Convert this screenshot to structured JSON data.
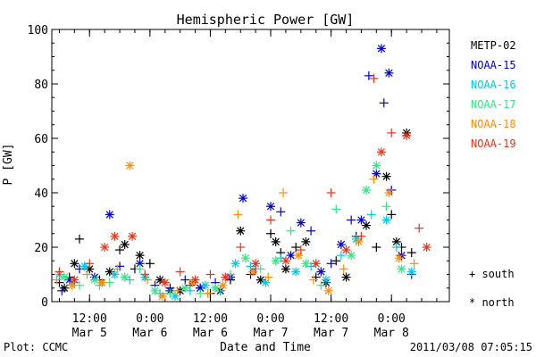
{
  "chart_data": {
    "type": "scatter",
    "title": "Hemispheric Power [GW]",
    "ylabel": "P [GW]",
    "xlabel": "Date and Time",
    "ylim": [
      0,
      100
    ],
    "xlim": [
      "2011-03-05T04:30",
      "2011-03-08T11:30"
    ],
    "yticks": [
      0,
      20,
      40,
      60,
      80,
      100
    ],
    "xticks": [
      {
        "time": "2011-03-05T12:00",
        "label1": "12:00",
        "label2": "Mar 5"
      },
      {
        "time": "2011-03-06T00:00",
        "label1": "0:00",
        "label2": "Mar 6"
      },
      {
        "time": "2011-03-06T12:00",
        "label1": "12:00",
        "label2": "Mar 6"
      },
      {
        "time": "2011-03-07T00:00",
        "label1": "0:00",
        "label2": "Mar 7"
      },
      {
        "time": "2011-03-07T12:00",
        "label1": "12:00",
        "label2": "Mar 7"
      },
      {
        "time": "2011-03-08T00:00",
        "label1": "0:00",
        "label2": "Mar 8"
      }
    ],
    "marker_legend": {
      "south": "+ south",
      "north": "* north"
    },
    "series": [
      {
        "name": "METP-02",
        "color": "#000000",
        "points": [
          [
            "2011-03-05T06:00",
            7,
            "+"
          ],
          [
            "2011-03-05T07:00",
            5,
            "*"
          ],
          [
            "2011-03-05T08:00",
            9,
            "+"
          ],
          [
            "2011-03-05T09:00",
            14,
            "*"
          ],
          [
            "2011-03-05T10:00",
            23,
            "+"
          ],
          [
            "2011-03-05T12:00",
            12,
            "*"
          ],
          [
            "2011-03-05T14:00",
            8,
            "+"
          ],
          [
            "2011-03-05T16:00",
            11,
            "*"
          ],
          [
            "2011-03-05T18:00",
            19,
            "+"
          ],
          [
            "2011-03-05T19:00",
            21,
            "*"
          ],
          [
            "2011-03-05T21:00",
            12,
            "+"
          ],
          [
            "2011-03-05T22:00",
            17,
            "*"
          ],
          [
            "2011-03-06T00:00",
            14,
            "+"
          ],
          [
            "2011-03-06T02:00",
            8,
            "*"
          ],
          [
            "2011-03-06T04:00",
            5,
            "+"
          ],
          [
            "2011-03-06T06:00",
            4,
            "*"
          ],
          [
            "2011-03-06T08:00",
            6,
            "+"
          ],
          [
            "2011-03-06T10:00",
            5,
            "*"
          ],
          [
            "2011-03-06T12:00",
            3,
            "+"
          ],
          [
            "2011-03-06T14:00",
            4,
            "*"
          ],
          [
            "2011-03-06T16:00",
            8,
            "+"
          ],
          [
            "2011-03-06T18:00",
            26,
            "*"
          ],
          [
            "2011-03-06T20:00",
            10,
            "+"
          ],
          [
            "2011-03-06T22:00",
            8,
            "*"
          ],
          [
            "2011-03-07T00:00",
            25,
            "+"
          ],
          [
            "2011-03-07T01:00",
            22,
            "*"
          ],
          [
            "2011-03-07T02:00",
            18,
            "+"
          ],
          [
            "2011-03-07T03:00",
            12,
            "*"
          ],
          [
            "2011-03-07T05:00",
            20,
            "+"
          ],
          [
            "2011-03-07T07:00",
            22,
            "*"
          ],
          [
            "2011-03-07T09:00",
            9,
            "+"
          ],
          [
            "2011-03-07T11:00",
            7,
            "*"
          ],
          [
            "2011-03-07T13:00",
            15,
            "+"
          ],
          [
            "2011-03-07T15:00",
            9,
            "*"
          ],
          [
            "2011-03-07T17:00",
            24,
            "+"
          ],
          [
            "2011-03-07T19:00",
            28,
            "*"
          ],
          [
            "2011-03-07T21:00",
            20,
            "+"
          ],
          [
            "2011-03-07T23:00",
            46,
            "*"
          ],
          [
            "2011-03-08T00:00",
            32,
            "+"
          ],
          [
            "2011-03-08T01:00",
            22,
            "*"
          ],
          [
            "2011-03-08T02:00",
            20,
            "+"
          ],
          [
            "2011-03-08T03:00",
            62,
            "*"
          ],
          [
            "2011-03-08T04:00",
            18,
            "+"
          ]
        ]
      },
      {
        "name": "NOAA-15",
        "color": "#0000cc",
        "points": [
          [
            "2011-03-05T06:30",
            4,
            "+"
          ],
          [
            "2011-03-05T08:00",
            8,
            "*"
          ],
          [
            "2011-03-05T10:00",
            12,
            "+"
          ],
          [
            "2011-03-05T13:00",
            9,
            "*"
          ],
          [
            "2011-03-05T16:00",
            32,
            "*"
          ],
          [
            "2011-03-05T18:00",
            13,
            "+"
          ],
          [
            "2011-03-05T22:00",
            14,
            "*"
          ],
          [
            "2011-03-06T01:00",
            6,
            "+"
          ],
          [
            "2011-03-06T04:00",
            4,
            "*"
          ],
          [
            "2011-03-06T07:00",
            8,
            "+"
          ],
          [
            "2011-03-06T10:00",
            5,
            "*"
          ],
          [
            "2011-03-06T13:00",
            7,
            "+"
          ],
          [
            "2011-03-06T16:00",
            9,
            "*"
          ],
          [
            "2011-03-06T18:30",
            38,
            "*"
          ],
          [
            "2011-03-06T21:00",
            12,
            "+"
          ],
          [
            "2011-03-07T00:00",
            35,
            "*"
          ],
          [
            "2011-03-07T02:00",
            33,
            "+"
          ],
          [
            "2011-03-07T04:00",
            17,
            "*"
          ],
          [
            "2011-03-07T06:00",
            29,
            "*"
          ],
          [
            "2011-03-07T08:00",
            26,
            "+"
          ],
          [
            "2011-03-07T10:00",
            11,
            "*"
          ],
          [
            "2011-03-07T12:00",
            14,
            "+"
          ],
          [
            "2011-03-07T14:00",
            21,
            "*"
          ],
          [
            "2011-03-07T16:00",
            30,
            "+"
          ],
          [
            "2011-03-07T18:00",
            30,
            "*"
          ],
          [
            "2011-03-07T19:30",
            83,
            "+"
          ],
          [
            "2011-03-07T21:00",
            47,
            "*"
          ],
          [
            "2011-03-07T22:00",
            93,
            "*"
          ],
          [
            "2011-03-07T22:30",
            73,
            "+"
          ],
          [
            "2011-03-07T23:30",
            84,
            "*"
          ],
          [
            "2011-03-08T00:00",
            41,
            "+"
          ],
          [
            "2011-03-08T02:00",
            17,
            "*"
          ],
          [
            "2011-03-08T04:00",
            10,
            "+"
          ]
        ]
      },
      {
        "name": "NOAA-16",
        "color": "#00c8e6",
        "points": [
          [
            "2011-03-05T06:00",
            10,
            "*"
          ],
          [
            "2011-03-05T09:00",
            7,
            "+"
          ],
          [
            "2011-03-05T11:00",
            13,
            "*"
          ],
          [
            "2011-03-05T14:00",
            6,
            "+"
          ],
          [
            "2011-03-05T17:00",
            10,
            "*"
          ],
          [
            "2011-03-05T20:00",
            8,
            "+"
          ],
          [
            "2011-03-05T23:00",
            9,
            "*"
          ],
          [
            "2011-03-06T02:00",
            3,
            "+"
          ],
          [
            "2011-03-06T05:00",
            2,
            "*"
          ],
          [
            "2011-03-06T08:00",
            4,
            "+"
          ],
          [
            "2011-03-06T11:00",
            6,
            "*"
          ],
          [
            "2011-03-06T14:00",
            4,
            "+"
          ],
          [
            "2011-03-06T17:00",
            14,
            "*"
          ],
          [
            "2011-03-06T20:00",
            13,
            "+"
          ],
          [
            "2011-03-06T23:00",
            7,
            "*"
          ],
          [
            "2011-03-07T02:00",
            16,
            "+"
          ],
          [
            "2011-03-07T05:00",
            11,
            "*"
          ],
          [
            "2011-03-07T08:00",
            13,
            "+"
          ],
          [
            "2011-03-07T11:00",
            8,
            "*"
          ],
          [
            "2011-03-07T14:00",
            17,
            "+"
          ],
          [
            "2011-03-07T17:00",
            23,
            "*"
          ],
          [
            "2011-03-07T20:00",
            32,
            "+"
          ],
          [
            "2011-03-07T23:00",
            30,
            "*"
          ],
          [
            "2011-03-08T01:00",
            20,
            "+"
          ],
          [
            "2011-03-08T04:00",
            11,
            "*"
          ]
        ]
      },
      {
        "name": "NOAA-17",
        "color": "#33e680",
        "points": [
          [
            "2011-03-05T07:00",
            9,
            "*"
          ],
          [
            "2011-03-05T10:00",
            6,
            "+"
          ],
          [
            "2011-03-05T13:00",
            8,
            "*"
          ],
          [
            "2011-03-05T16:00",
            7,
            "+"
          ],
          [
            "2011-03-05T19:00",
            9,
            "*"
          ],
          [
            "2011-03-05T22:00",
            12,
            "+"
          ],
          [
            "2011-03-06T01:00",
            4,
            "*"
          ],
          [
            "2011-03-06T04:00",
            3,
            "+"
          ],
          [
            "2011-03-06T07:00",
            5,
            "*"
          ],
          [
            "2011-03-06T10:00",
            3,
            "+"
          ],
          [
            "2011-03-06T13:00",
            5,
            "*"
          ],
          [
            "2011-03-06T16:00",
            10,
            "+"
          ],
          [
            "2011-03-06T19:00",
            16,
            "*"
          ],
          [
            "2011-03-06T22:00",
            12,
            "+"
          ],
          [
            "2011-03-07T01:00",
            15,
            "*"
          ],
          [
            "2011-03-07T04:00",
            26,
            "+"
          ],
          [
            "2011-03-07T07:00",
            14,
            "*"
          ],
          [
            "2011-03-07T10:00",
            6,
            "+"
          ],
          [
            "2011-03-07T13:00",
            34,
            "+"
          ],
          [
            "2011-03-07T16:00",
            17,
            "*"
          ],
          [
            "2011-03-07T19:00",
            41,
            "*"
          ],
          [
            "2011-03-07T21:00",
            50,
            "*"
          ],
          [
            "2011-03-07T23:00",
            35,
            "+"
          ],
          [
            "2011-03-08T02:00",
            12,
            "*"
          ]
        ]
      },
      {
        "name": "NOAA-18",
        "color": "#ff8c00",
        "points": [
          [
            "2011-03-05T05:30",
            8,
            "+"
          ],
          [
            "2011-03-05T08:30",
            6,
            "*"
          ],
          [
            "2011-03-05T11:30",
            10,
            "+"
          ],
          [
            "2011-03-05T14:30",
            7,
            "*"
          ],
          [
            "2011-03-05T17:30",
            12,
            "+"
          ],
          [
            "2011-03-05T20:00",
            50,
            "*"
          ],
          [
            "2011-03-05T23:30",
            8,
            "+"
          ],
          [
            "2011-03-06T02:30",
            2,
            "*"
          ],
          [
            "2011-03-06T05:30",
            4,
            "+"
          ],
          [
            "2011-03-06T08:30",
            7,
            "*"
          ],
          [
            "2011-03-06T11:30",
            3,
            "+"
          ],
          [
            "2011-03-06T14:30",
            6,
            "*"
          ],
          [
            "2011-03-06T17:30",
            32,
            "+"
          ],
          [
            "2011-03-06T20:30",
            11,
            "*"
          ],
          [
            "2011-03-06T23:30",
            9,
            "+"
          ],
          [
            "2011-03-07T02:30",
            40,
            "+"
          ],
          [
            "2011-03-07T05:30",
            17,
            "*"
          ],
          [
            "2011-03-07T08:30",
            8,
            "+"
          ],
          [
            "2011-03-07T11:30",
            4,
            "*"
          ],
          [
            "2011-03-07T14:30",
            12,
            "+"
          ],
          [
            "2011-03-07T17:30",
            22,
            "*"
          ],
          [
            "2011-03-07T20:30",
            45,
            "+"
          ],
          [
            "2011-03-07T23:30",
            40,
            "*"
          ],
          [
            "2011-03-08T01:30",
            16,
            "*"
          ],
          [
            "2011-03-08T04:30",
            14,
            "+"
          ]
        ]
      },
      {
        "name": "NOAA-19",
        "color": "#e63319",
        "points": [
          [
            "2011-03-05T06:00",
            11,
            "+"
          ],
          [
            "2011-03-05T09:00",
            8,
            "*"
          ],
          [
            "2011-03-05T12:00",
            14,
            "+"
          ],
          [
            "2011-03-05T15:00",
            20,
            "*"
          ],
          [
            "2011-03-05T17:00",
            24,
            "*"
          ],
          [
            "2011-03-05T20:30",
            24,
            "*"
          ],
          [
            "2011-03-05T23:00",
            10,
            "+"
          ],
          [
            "2011-03-06T03:00",
            7,
            "*"
          ],
          [
            "2011-03-06T06:00",
            11,
            "+"
          ],
          [
            "2011-03-06T09:00",
            8,
            "*"
          ],
          [
            "2011-03-06T12:00",
            10,
            "+"
          ],
          [
            "2011-03-06T15:00",
            9,
            "*"
          ],
          [
            "2011-03-06T18:00",
            20,
            "+"
          ],
          [
            "2011-03-06T21:00",
            14,
            "*"
          ],
          [
            "2011-03-07T00:00",
            30,
            "+"
          ],
          [
            "2011-03-07T03:00",
            15,
            "*"
          ],
          [
            "2011-03-07T06:00",
            19,
            "+"
          ],
          [
            "2011-03-07T09:00",
            14,
            "*"
          ],
          [
            "2011-03-07T12:00",
            40,
            "+"
          ],
          [
            "2011-03-07T15:00",
            19,
            "*"
          ],
          [
            "2011-03-07T18:00",
            24,
            "+"
          ],
          [
            "2011-03-07T20:30",
            82,
            "+"
          ],
          [
            "2011-03-07T22:00",
            55,
            "*"
          ],
          [
            "2011-03-08T00:00",
            62,
            "+"
          ],
          [
            "2011-03-08T03:00",
            61,
            "*"
          ],
          [
            "2011-03-08T05:30",
            27,
            "+"
          ],
          [
            "2011-03-08T07:00",
            20,
            "*"
          ]
        ]
      }
    ]
  },
  "footer": {
    "plot_credit": "Plot: CCMC",
    "timestamp": "2011/03/08 07:05:15"
  }
}
